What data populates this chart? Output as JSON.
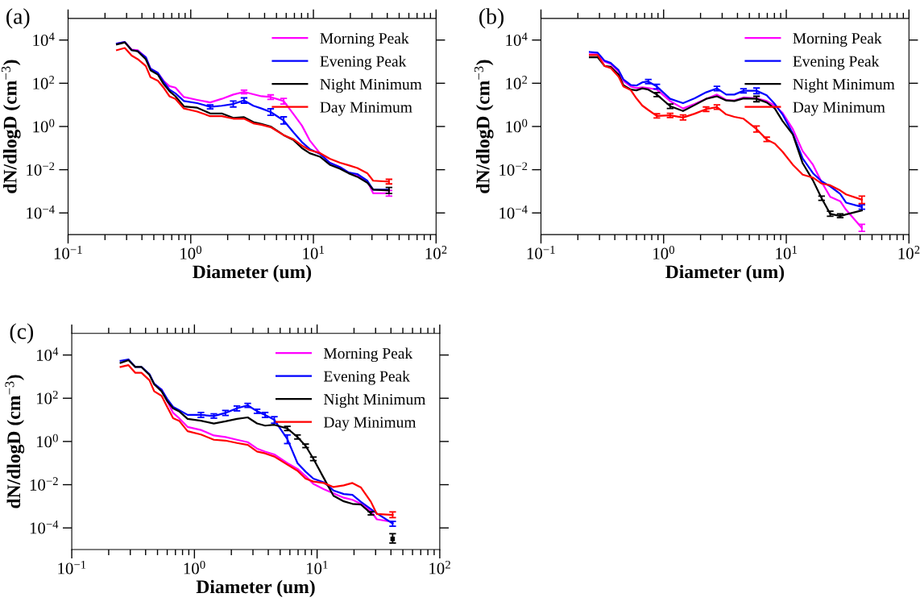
{
  "chart_data": [
    {
      "type": "line",
      "title": "(a)",
      "xlabel": "Diameter (um)",
      "ylabel": "dN/dlogD (cm$^{−3}$)",
      "log": "xy",
      "grid": false,
      "legend": "top right",
      "xlim": [
        0.1,
        100
      ],
      "ylim": [
        1e-05,
        100000
      ],
      "xticks": [
        {
          "value": 0.1,
          "label": "10$^{−1}$"
        },
        {
          "value": 1,
          "label": "10$^{0}$"
        },
        {
          "value": 10,
          "label": "10$^{1}$"
        },
        {
          "value": 100,
          "label": "10$^{2}$"
        }
      ],
      "yticks": [
        {
          "value": 0.0001,
          "label": "10$^{−4}$"
        },
        {
          "value": 0.01,
          "label": "10$^{−2}$"
        },
        {
          "value": 1,
          "label": "10$^{0}$"
        },
        {
          "value": 100,
          "label": "10$^{2}$"
        },
        {
          "value": 10000,
          "label": "10$^{4}$"
        }
      ],
      "x": [
        0.25,
        0.29,
        0.33,
        0.37,
        0.43,
        0.47,
        0.54,
        0.6,
        0.67,
        0.75,
        0.88,
        1.13,
        1.44,
        1.79,
        2.22,
        2.72,
        3.24,
        3.77,
        4.48,
        5.72,
        6.92,
        8.06,
        9.32,
        11.3,
        13.6,
        16.5,
        19.4,
        22.8,
        27.5,
        30.7,
        41.3
      ],
      "series": [
        {
          "name": "Morning Peak",
          "color": "#ff00ff",
          "values": [
            6900,
            8100,
            3600,
            3400,
            1600,
            470,
            300,
            130,
            74,
            63,
            23,
            17,
            13,
            19,
            30,
            40,
            31,
            25,
            23,
            15,
            3.6,
            1.1,
            0.23,
            0.058,
            0.021,
            0.013,
            0.0074,
            0.0054,
            0.003,
            0.00081,
            0.00081
          ],
          "errors": [
            null,
            null,
            null,
            null,
            null,
            null,
            null,
            null,
            null,
            null,
            null,
            null,
            null,
            null,
            null,
            [
              33,
              48
            ],
            null,
            null,
            [
              18,
              29
            ],
            [
              11,
              20
            ],
            null,
            null,
            null,
            null,
            null,
            null,
            null,
            null,
            null,
            null,
            [
              0.0006,
              0.0011
            ]
          ]
        },
        {
          "name": "Evening Peak",
          "color": "#0000ff",
          "values": [
            6900,
            8100,
            3400,
            3100,
            1600,
            470,
            300,
            120,
            51,
            34,
            15,
            12,
            8.1,
            9.1,
            11,
            16,
            9.1,
            6.8,
            4.7,
            1.9,
            0.51,
            0.19,
            0.091,
            0.054,
            0.021,
            0.013,
            0.0074,
            0.0063,
            0.0031,
            0.0012,
            0.0012
          ],
          "errors": [
            null,
            null,
            null,
            null,
            null,
            null,
            null,
            null,
            null,
            null,
            null,
            null,
            [
              6.5,
              10
            ],
            null,
            [
              8,
              15
            ],
            [
              12,
              21
            ],
            null,
            null,
            [
              3.3,
              6.6
            ],
            [
              1.3,
              2.8
            ],
            null,
            null,
            null,
            null,
            null,
            null,
            null,
            null,
            null,
            null,
            null
          ]
        },
        {
          "name": "Night Minimum",
          "color": "#000000",
          "values": [
            6300,
            7800,
            3400,
            3000,
            1300,
            400,
            250,
            93,
            43,
            25,
            8.5,
            7.4,
            4,
            4,
            2.5,
            2.7,
            1.6,
            1.3,
            1,
            0.4,
            0.23,
            0.1,
            0.058,
            0.04,
            0.017,
            0.011,
            0.0068,
            0.0047,
            0.0025,
            0.0012,
            0.0011
          ],
          "errors": [
            null,
            null,
            null,
            null,
            null,
            null,
            null,
            null,
            null,
            null,
            null,
            null,
            null,
            null,
            null,
            null,
            null,
            null,
            null,
            null,
            null,
            null,
            null,
            null,
            null,
            null,
            null,
            null,
            null,
            null,
            [
              0.0008,
              0.0015
            ]
          ]
        },
        {
          "name": "Day Minimum",
          "color": "#ff0000",
          "values": [
            3400,
            4300,
            1900,
            1300,
            630,
            190,
            130,
            63,
            25,
            19,
            6.8,
            4.9,
            3,
            3,
            2.3,
            2.3,
            1.4,
            1.2,
            0.93,
            0.4,
            0.25,
            0.13,
            0.081,
            0.059,
            0.032,
            0.021,
            0.016,
            0.012,
            0.0069,
            0.0031,
            0.0028
          ],
          "errors": [
            null,
            null,
            null,
            null,
            null,
            null,
            null,
            null,
            null,
            null,
            null,
            null,
            null,
            null,
            null,
            null,
            null,
            null,
            null,
            null,
            null,
            null,
            null,
            null,
            null,
            null,
            null,
            null,
            null,
            null,
            [
              0.0022,
              0.0036
            ]
          ]
        }
      ]
    },
    {
      "type": "line",
      "title": "(b)",
      "xlabel": "Diameter (um)",
      "ylabel": "dN/dlogD (cm$^{−3}$)",
      "log": "xy",
      "grid": false,
      "legend": "top right",
      "xlim": [
        0.1,
        100
      ],
      "ylim": [
        1e-05,
        100000
      ],
      "xticks": [
        {
          "value": 0.1,
          "label": "10$^{−1}$"
        },
        {
          "value": 1,
          "label": "10$^{0}$"
        },
        {
          "value": 10,
          "label": "10$^{1}$"
        },
        {
          "value": 100,
          "label": "10$^{2}$"
        }
      ],
      "yticks": [
        {
          "value": 0.0001,
          "label": "10$^{−4}$"
        },
        {
          "value": 0.01,
          "label": "10$^{−2}$"
        },
        {
          "value": 1,
          "label": "10$^{0}$"
        },
        {
          "value": 100,
          "label": "10$^{2}$"
        },
        {
          "value": 10000,
          "label": "10$^{4}$"
        }
      ],
      "x": [
        0.25,
        0.29,
        0.33,
        0.37,
        0.43,
        0.47,
        0.54,
        0.6,
        0.67,
        0.75,
        0.88,
        1.13,
        1.44,
        1.79,
        2.22,
        2.72,
        3.24,
        3.77,
        4.48,
        5.72,
        6.92,
        8.06,
        9.32,
        11.3,
        13.6,
        16.5,
        19.4,
        22.8,
        27.5,
        30.7,
        41.3
      ],
      "series": [
        {
          "name": "Morning Peak",
          "color": "#ff00ff",
          "values": [
            2200,
            2200,
            1000,
            790,
            340,
            130,
            71,
            60,
            65,
            60,
            51,
            15,
            6.8,
            11,
            19,
            30,
            17,
            16,
            22,
            20,
            15,
            9.3,
            4.3,
            0.76,
            0.072,
            0.017,
            0.0027,
            0.00056,
            0.00035,
            0.00014,
            2e-05
          ],
          "errors": [
            null,
            null,
            null,
            null,
            null,
            null,
            null,
            null,
            null,
            null,
            null,
            null,
            null,
            null,
            null,
            null,
            null,
            null,
            null,
            null,
            null,
            null,
            null,
            null,
            null,
            null,
            null,
            null,
            null,
            null,
            [
              1.4e-05,
              3e-05
            ]
          ]
        },
        {
          "name": "Evening Peak",
          "color": "#0000ff",
          "values": [
            2800,
            2600,
            1100,
            870,
            400,
            150,
            83,
            78,
            110,
            120,
            71,
            19,
            12,
            20,
            38,
            58,
            30,
            30,
            45,
            45,
            28,
            11,
            3.6,
            0.47,
            0.033,
            0.0069,
            0.0029,
            0.0017,
            0.00076,
            0.0003,
            0.00019
          ],
          "errors": [
            null,
            null,
            null,
            null,
            null,
            null,
            null,
            null,
            null,
            [
              95,
              150
            ],
            [
              55,
              90
            ],
            null,
            null,
            null,
            null,
            [
              45,
              72
            ],
            null,
            null,
            [
              36,
              56
            ],
            [
              33,
              60
            ],
            null,
            null,
            null,
            null,
            null,
            null,
            null,
            null,
            null,
            null,
            [
              0.00015,
              0.00024
            ]
          ]
        },
        {
          "name": "Night Minimum",
          "color": "#000000",
          "values": [
            1600,
            1600,
            630,
            580,
            250,
            81,
            51,
            47,
            58,
            51,
            30,
            8.7,
            5.2,
            9.8,
            19,
            25,
            16,
            15,
            20,
            19,
            13,
            6.8,
            1.8,
            0.43,
            0.02,
            0.0032,
            0.00048,
            9.1e-05,
            7.2e-05,
            8.5e-05,
            0.00013
          ],
          "errors": [
            null,
            null,
            null,
            null,
            null,
            null,
            null,
            null,
            null,
            null,
            [
              24,
              37
            ],
            [
              6.8,
              11
            ],
            null,
            null,
            null,
            null,
            null,
            null,
            null,
            [
              14,
              25
            ],
            null,
            null,
            null,
            null,
            null,
            null,
            [
              0.00038,
              0.0006
            ],
            [
              7e-05,
              0.00012
            ],
            [
              6e-05,
              9e-05
            ],
            null,
            null
          ]
        },
        {
          "name": "Day Minimum",
          "color": "#ff0000",
          "values": [
            2000,
            2000,
            630,
            510,
            200,
            71,
            48,
            20,
            9.3,
            5.8,
            3.1,
            3.3,
            2.6,
            3.9,
            6.3,
            7.9,
            3.6,
            2.8,
            2.3,
            0.76,
            0.25,
            0.16,
            0.068,
            0.017,
            0.0059,
            0.0043,
            0.0023,
            0.0019,
            0.0011,
            0.00072,
            0.00041
          ],
          "errors": [
            null,
            null,
            null,
            null,
            null,
            null,
            null,
            null,
            null,
            null,
            [
              2.5,
              3.9
            ],
            [
              2.6,
              4.1
            ],
            [
              2,
              3.4
            ],
            null,
            [
              5,
              8
            ],
            [
              6.3,
              10
            ],
            null,
            null,
            null,
            [
              0.55,
              1.05
            ],
            [
              0.2,
              0.32
            ],
            null,
            null,
            null,
            null,
            null,
            null,
            null,
            null,
            null,
            [
              0.00027,
              0.0006
            ]
          ]
        }
      ]
    },
    {
      "type": "line",
      "title": "(c)",
      "xlabel": "Diameter (um)",
      "ylabel": "dN/dlogD (cm$^{−3}$)",
      "log": "xy",
      "grid": false,
      "legend": "top right",
      "xlim": [
        0.1,
        100
      ],
      "ylim": [
        1e-05,
        100000
      ],
      "xticks": [
        {
          "value": 0.1,
          "label": "10$^{−1}$"
        },
        {
          "value": 1,
          "label": "10$^{0}$"
        },
        {
          "value": 10,
          "label": "10$^{1}$"
        },
        {
          "value": 100,
          "label": "10$^{2}$"
        }
      ],
      "yticks": [
        {
          "value": 0.0001,
          "label": "10$^{−4}$"
        },
        {
          "value": 0.01,
          "label": "10$^{−2}$"
        },
        {
          "value": 1,
          "label": "10$^{0}$"
        },
        {
          "value": 100,
          "label": "10$^{2}$"
        },
        {
          "value": 10000,
          "label": "10$^{4}$"
        }
      ],
      "x": [
        0.25,
        0.29,
        0.33,
        0.37,
        0.43,
        0.47,
        0.54,
        0.6,
        0.67,
        0.75,
        0.88,
        1.13,
        1.44,
        1.79,
        2.22,
        2.72,
        3.24,
        3.77,
        4.48,
        5.72,
        6.92,
        8.06,
        9.32,
        11.3,
        13.6,
        16.5,
        19.4,
        22.8,
        27.5,
        30.7,
        41.3
      ],
      "series": [
        {
          "name": "Morning Peak",
          "color": "#ff00ff",
          "values": [
            null,
            null,
            null,
            null,
            null,
            null,
            250,
            74,
            21,
            12,
            4.7,
            3.4,
            1.9,
            1.6,
            1.2,
            0.93,
            0.47,
            0.34,
            0.25,
            0.1,
            0.054,
            0.025,
            0.011,
            0.0063,
            0.004,
            0.0025,
            0.002,
            0.0013,
            0.00059,
            0.00025,
            0.00019
          ]
        },
        {
          "name": "Evening Peak",
          "color": "#0000ff",
          "values": [
            5400,
            6300,
            2800,
            2800,
            1300,
            470,
            250,
            93,
            40,
            28,
            17,
            17,
            15,
            21,
            34,
            47,
            25,
            17,
            10,
            1.3,
            0.1,
            0.04,
            0.019,
            0.013,
            0.0054,
            0.0037,
            0.0034,
            0.0016,
            0.00074,
            0.00047,
            0.00016
          ],
          "errors": [
            null,
            null,
            null,
            null,
            null,
            null,
            null,
            null,
            null,
            null,
            null,
            [
              13,
              22
            ],
            [
              12,
              19
            ],
            [
              16,
              27
            ],
            [
              26,
              44
            ],
            [
              38,
              58
            ],
            [
              20,
              31
            ],
            [
              13,
              22
            ],
            [
              7,
              14
            ],
            [
              0.8,
              2
            ],
            null,
            null,
            null,
            null,
            null,
            null,
            null,
            null,
            null,
            null,
            [
              0.00012,
              0.0002
            ]
          ]
        },
        {
          "name": "Night Minimum",
          "color": "#000000",
          "values": [
            4300,
            5800,
            2800,
            2800,
            1200,
            440,
            210,
            74,
            34,
            25,
            11,
            9.1,
            6.8,
            8.5,
            11,
            13,
            6.8,
            5.4,
            5.9,
            4,
            1.6,
            0.63,
            0.16,
            0.021,
            0.0031,
            0.0017,
            0.0013,
            0.0012,
            0.00047,
            null,
            3.1e-05
          ],
          "errors": [
            null,
            null,
            null,
            null,
            null,
            null,
            null,
            null,
            null,
            null,
            null,
            null,
            null,
            null,
            null,
            null,
            null,
            null,
            null,
            [
              3.2,
              5
            ],
            [
              1.3,
              2
            ],
            [
              0.52,
              0.76
            ],
            [
              0.13,
              0.19
            ],
            null,
            null,
            null,
            null,
            null,
            [
              0.0004,
              0.00056
            ],
            null,
            [
              2e-05,
              5.4e-05
            ]
          ]
        },
        {
          "name": "Day Minimum",
          "color": "#ff0000",
          "values": [
            2800,
            3400,
            1500,
            1500,
            680,
            210,
            130,
            40,
            12,
            9.1,
            3,
            2.1,
            1.2,
            1.1,
            0.85,
            0.69,
            0.34,
            0.28,
            0.2,
            0.085,
            0.044,
            0.019,
            0.014,
            0.012,
            0.0078,
            0.0093,
            0.012,
            0.0074,
            0.0016,
            0.00044,
            0.0004
          ],
          "errors": [
            null,
            null,
            null,
            null,
            null,
            null,
            null,
            null,
            null,
            null,
            null,
            null,
            null,
            null,
            null,
            null,
            null,
            null,
            null,
            null,
            null,
            null,
            null,
            null,
            null,
            null,
            null,
            null,
            null,
            null,
            [
              0.0003,
              0.00055
            ]
          ]
        }
      ]
    }
  ]
}
